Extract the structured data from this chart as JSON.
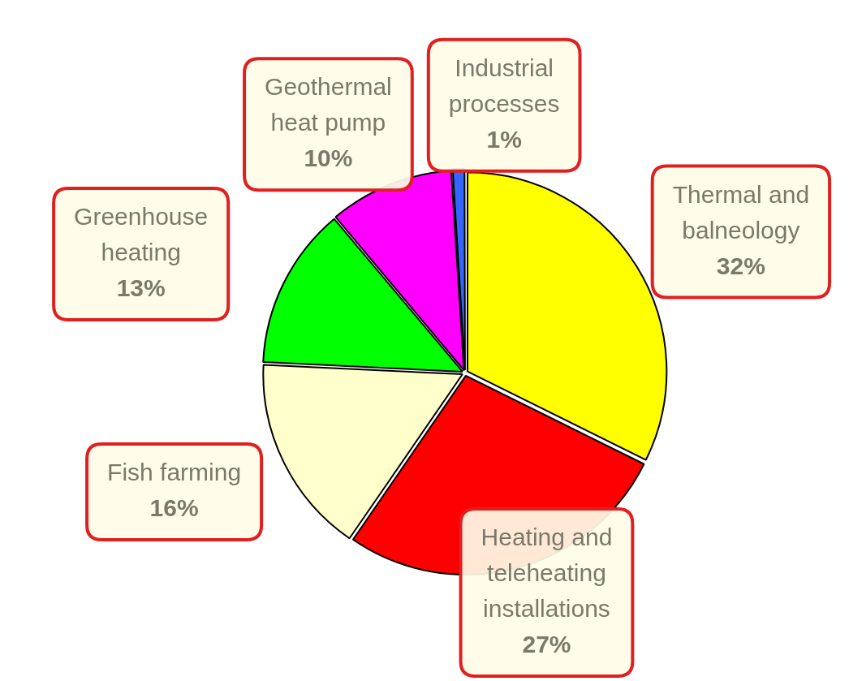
{
  "chart_data": {
    "type": "pie",
    "categories": [
      "Thermal and balneology",
      "Heating and teleheating installations",
      "Fish farming",
      "Greenhouse heating",
      "Geothermal heat pump",
      "Industrial processes"
    ],
    "values": [
      32,
      27,
      16,
      13,
      10,
      1
    ],
    "colors": [
      "#ffff00",
      "#ff0000",
      "#ffffcc",
      "#00ff00",
      "#ff00ff",
      "#3366ff"
    ],
    "value_labels": [
      "32%",
      "27%",
      "16%",
      "13%",
      "10%",
      "1%"
    ],
    "legend": false
  }
}
